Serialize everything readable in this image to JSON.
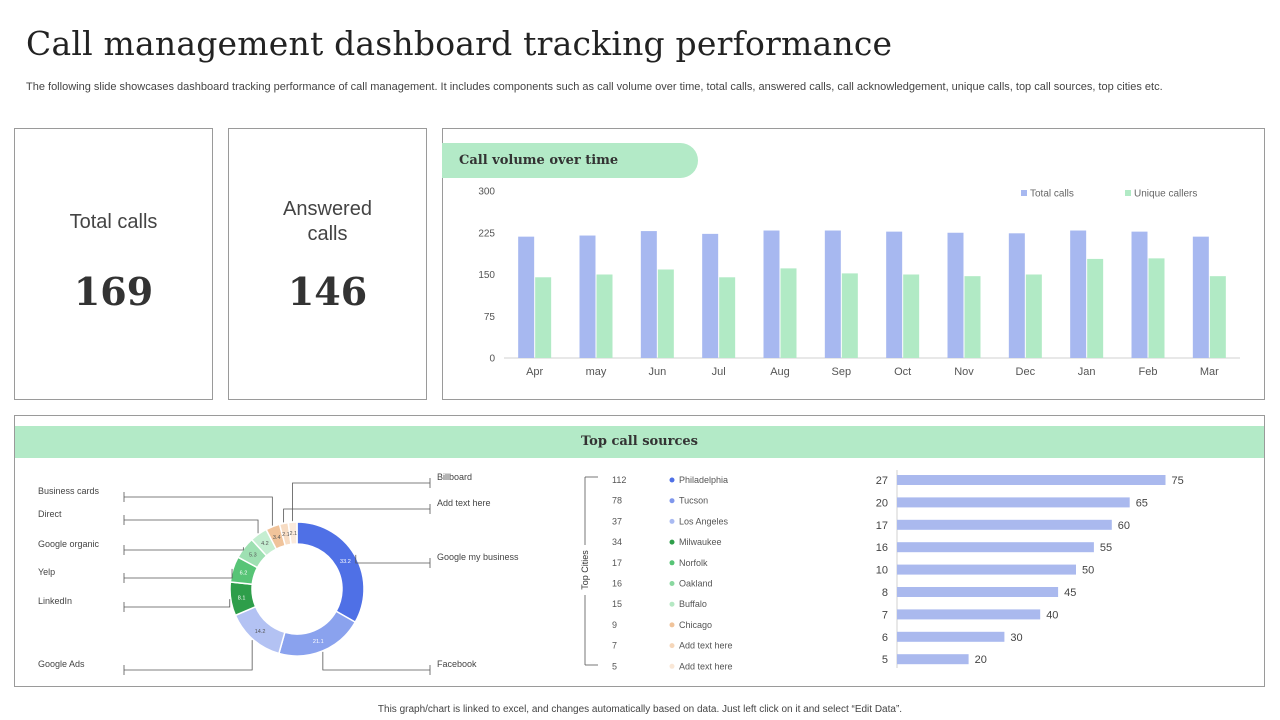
{
  "header": {
    "title": "Call management dashboard tracking performance",
    "subtitle": "The following slide showcases dashboard tracking performance of call management. It includes components such as call volume over time, total calls, answered calls, call acknowledgement, unique calls, top call sources, top cities etc."
  },
  "kpis": {
    "total": {
      "label": "Total calls",
      "value": "169"
    },
    "answered": {
      "label": "Answered calls",
      "value": "146"
    }
  },
  "colors": {
    "blue": "#a7b8f0",
    "green": "#b1eac5",
    "band": "#b3eac7",
    "bar_hbar": "#aab9ee"
  },
  "chart_data": [
    {
      "type": "bar",
      "title": "Call volume over time",
      "categories": [
        "Apr",
        "may",
        "Jun",
        "Jul",
        "Aug",
        "Sep",
        "Oct",
        "Nov",
        "Dec",
        "Jan",
        "Feb",
        "Mar"
      ],
      "series": [
        {
          "name": "Total calls",
          "color": "#a7b8f0",
          "values": [
            218,
            220,
            228,
            223,
            229,
            229,
            227,
            225,
            224,
            229,
            227,
            218
          ]
        },
        {
          "name": "Unique callers",
          "color": "#b1eac5",
          "values": [
            145,
            150,
            159,
            145,
            161,
            152,
            150,
            147,
            150,
            178,
            179,
            147
          ]
        }
      ],
      "ylim": [
        0,
        300
      ],
      "yticks": [
        "0",
        "75",
        "150",
        "225",
        "300"
      ],
      "legend": "top-right",
      "grid": false
    },
    {
      "type": "pie",
      "title": "Top call sources",
      "variant": "donut",
      "slices": [
        {
          "label": "Google my business",
          "value": 33.2,
          "display": "33.2",
          "color": "#4f70e6"
        },
        {
          "label": "Facebook",
          "value": 21.1,
          "display": "21.1",
          "color": "#8aa2ee"
        },
        {
          "label": "Google Ads",
          "value": 14.2,
          "display": "14.2",
          "color": "#b3c2f3"
        },
        {
          "label": "LinkedIn",
          "value": 8.1,
          "display": "8.1",
          "color": "#2e9e4a"
        },
        {
          "label": "Yelp",
          "value": 6.2,
          "display": "6.2",
          "color": "#57c476"
        },
        {
          "label": "Google organic",
          "value": 5.3,
          "display": "5.3",
          "color": "#9ee0b2"
        },
        {
          "label": "Direct",
          "value": 4.2,
          "display": "4.2",
          "color": "#c5eed1"
        },
        {
          "label": "Business cards",
          "value": 3.4,
          "display": "3.4",
          "color": "#f0c39a"
        },
        {
          "label": "Add text here",
          "value": 2.1,
          "display": "2.1",
          "color": "#f7dcc3"
        },
        {
          "label": "Billboard",
          "value": 2.1,
          "display": "2.1",
          "color": "#fbeadb"
        }
      ]
    },
    {
      "type": "table",
      "title": "Top Cities",
      "rows": [
        {
          "value": "112",
          "city": "Philadelphia",
          "color": "#4f70e6"
        },
        {
          "value": "78",
          "city": "Tucson",
          "color": "#7f97ec"
        },
        {
          "value": "37",
          "city": "Los Angeles",
          "color": "#a9baf2"
        },
        {
          "value": "34",
          "city": "Milwaukee",
          "color": "#2e9e4a"
        },
        {
          "value": "17",
          "city": "Norfolk",
          "color": "#57c476"
        },
        {
          "value": "16",
          "city": "Oakland",
          "color": "#8ad8a0"
        },
        {
          "value": "15",
          "city": "Buffalo",
          "color": "#b5e8c3"
        },
        {
          "value": "9",
          "city": "Chicago",
          "color": "#f0c39a"
        },
        {
          "value": "7",
          "city": "Add text here",
          "color": "#f5d6b9"
        },
        {
          "value": "5",
          "city": "Add text here",
          "color": "#f9e7d6"
        }
      ]
    },
    {
      "type": "bar",
      "orientation": "horizontal",
      "categories": [
        "27",
        "20",
        "17",
        "16",
        "10",
        "8",
        "7",
        "6",
        "5"
      ],
      "values": [
        75,
        65,
        60,
        55,
        50,
        45,
        40,
        30,
        20
      ],
      "xlim": [
        0,
        100
      ],
      "color": "#aab9ee"
    }
  ],
  "footer": {
    "note": "This graph/chart is linked to excel, and changes automatically based on data. Just left click on it and select “Edit Data”."
  }
}
